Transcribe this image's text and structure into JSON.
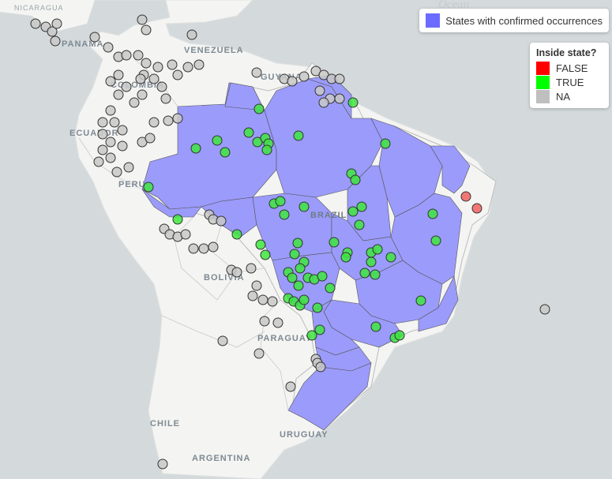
{
  "labels": {
    "nicaragua": "NICARAGUA",
    "ocean": "Ocean",
    "panama": "PANAMA",
    "venezuela": "VENEZUELA",
    "colombia": "COLOMBIA",
    "guyana": "GUYANA",
    "ecuador": "ECUADOR",
    "peru": "PERU",
    "brazil": "BRAZIL",
    "bolivia": "BOLIVIA",
    "paraguay": "PARAGUAY",
    "chile": "CHILE",
    "uruguay": "URUGUAY",
    "argentina": "ARGENTINA"
  },
  "legend_top": {
    "label": "States with confirmed occurrences",
    "color": "#6b6bff"
  },
  "legend_side": {
    "title": "Inside state?",
    "items": [
      {
        "label": "FALSE",
        "color": "#ff0000"
      },
      {
        "label": "TRUE",
        "color": "#00ff00"
      },
      {
        "label": "NA",
        "color": "#bfbfbf"
      }
    ]
  },
  "colors": {
    "land": "#f4f4f2",
    "sea": "#d4dadc",
    "states": "#9b9bfb",
    "false": "#f06060",
    "true": "#3ee63e",
    "na": "#c8c8c8"
  }
}
